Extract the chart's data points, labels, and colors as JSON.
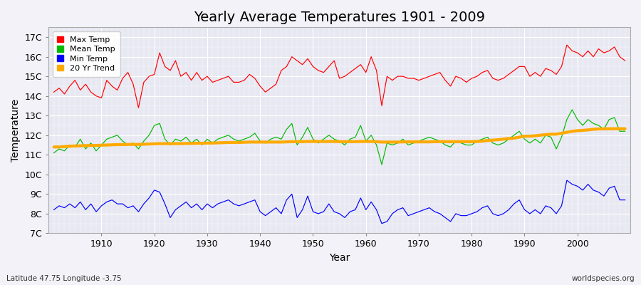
{
  "title": "Yearly Average Temperatures 1901 - 2009",
  "xlabel": "Year",
  "ylabel": "Temperature",
  "subtitle_left": "Latitude 47.75 Longitude -3.75",
  "subtitle_right": "worldspecies.org",
  "bg_color": "#f0f0f5",
  "plot_bg_color": "#e8e8f0",
  "years": [
    1901,
    1902,
    1903,
    1904,
    1905,
    1906,
    1907,
    1908,
    1909,
    1910,
    1911,
    1912,
    1913,
    1914,
    1915,
    1916,
    1917,
    1918,
    1919,
    1920,
    1921,
    1922,
    1923,
    1924,
    1925,
    1926,
    1927,
    1928,
    1929,
    1930,
    1931,
    1932,
    1933,
    1934,
    1935,
    1936,
    1937,
    1938,
    1939,
    1940,
    1941,
    1942,
    1943,
    1944,
    1945,
    1946,
    1947,
    1948,
    1949,
    1950,
    1951,
    1952,
    1953,
    1954,
    1955,
    1956,
    1957,
    1958,
    1959,
    1960,
    1961,
    1962,
    1963,
    1964,
    1965,
    1966,
    1967,
    1968,
    1969,
    1970,
    1971,
    1972,
    1973,
    1974,
    1975,
    1976,
    1977,
    1978,
    1979,
    1980,
    1981,
    1982,
    1983,
    1984,
    1985,
    1986,
    1987,
    1988,
    1989,
    1990,
    1991,
    1992,
    1993,
    1994,
    1995,
    1996,
    1997,
    1998,
    1999,
    2000,
    2001,
    2002,
    2003,
    2004,
    2005,
    2006,
    2007,
    2008,
    2009
  ],
  "max_temp": [
    14.2,
    14.4,
    14.1,
    14.5,
    14.8,
    14.3,
    14.6,
    14.2,
    14.0,
    13.9,
    14.8,
    14.5,
    14.3,
    14.9,
    15.2,
    14.6,
    13.4,
    14.7,
    15.0,
    15.1,
    16.2,
    15.5,
    15.3,
    15.8,
    15.0,
    15.2,
    14.8,
    15.2,
    14.8,
    15.0,
    14.7,
    14.8,
    14.9,
    15.0,
    14.7,
    14.7,
    14.8,
    15.1,
    14.9,
    14.5,
    14.2,
    14.4,
    14.6,
    15.3,
    15.5,
    16.0,
    15.8,
    15.6,
    15.9,
    15.5,
    15.3,
    15.2,
    15.5,
    15.8,
    14.9,
    15.0,
    15.2,
    15.4,
    15.6,
    15.2,
    16.0,
    15.3,
    13.5,
    15.0,
    14.8,
    15.0,
    15.0,
    14.9,
    14.9,
    14.8,
    14.9,
    15.0,
    15.1,
    15.2,
    14.8,
    14.5,
    15.0,
    14.9,
    14.7,
    14.9,
    15.0,
    15.2,
    15.3,
    14.9,
    14.8,
    14.9,
    15.1,
    15.3,
    15.5,
    15.5,
    15.0,
    15.2,
    15.0,
    15.4,
    15.3,
    15.1,
    15.5,
    16.6,
    16.3,
    16.2,
    16.0,
    16.3,
    16.0,
    16.4,
    16.2,
    16.3,
    16.5,
    16.0,
    15.8
  ],
  "mean_temp": [
    11.1,
    11.3,
    11.2,
    11.5,
    11.4,
    11.8,
    11.3,
    11.6,
    11.2,
    11.5,
    11.8,
    11.9,
    12.0,
    11.7,
    11.5,
    11.6,
    11.3,
    11.7,
    12.0,
    12.5,
    12.6,
    11.8,
    11.5,
    11.8,
    11.7,
    11.9,
    11.6,
    11.8,
    11.5,
    11.8,
    11.6,
    11.8,
    11.9,
    12.0,
    11.8,
    11.7,
    11.8,
    11.9,
    12.1,
    11.7,
    11.6,
    11.8,
    11.9,
    11.8,
    12.3,
    12.6,
    11.5,
    11.9,
    12.4,
    11.8,
    11.6,
    11.8,
    12.0,
    11.8,
    11.7,
    11.5,
    11.8,
    11.9,
    12.5,
    11.7,
    12.0,
    11.5,
    10.5,
    11.6,
    11.5,
    11.6,
    11.8,
    11.5,
    11.6,
    11.7,
    11.8,
    11.9,
    11.8,
    11.7,
    11.5,
    11.4,
    11.7,
    11.6,
    11.5,
    11.5,
    11.7,
    11.8,
    11.9,
    11.6,
    11.5,
    11.6,
    11.8,
    12.0,
    12.2,
    11.8,
    11.6,
    11.8,
    11.6,
    12.0,
    11.9,
    11.3,
    11.9,
    12.8,
    13.3,
    12.8,
    12.5,
    12.8,
    12.6,
    12.5,
    12.3,
    12.8,
    12.9,
    12.2,
    12.2
  ],
  "min_temp": [
    8.2,
    8.4,
    8.3,
    8.5,
    8.3,
    8.6,
    8.2,
    8.5,
    8.1,
    8.4,
    8.6,
    8.7,
    8.5,
    8.5,
    8.3,
    8.4,
    8.1,
    8.5,
    8.8,
    9.2,
    9.1,
    8.5,
    7.8,
    8.2,
    8.4,
    8.6,
    8.3,
    8.5,
    8.2,
    8.5,
    8.3,
    8.5,
    8.6,
    8.7,
    8.5,
    8.4,
    8.5,
    8.6,
    8.7,
    8.1,
    7.9,
    8.1,
    8.3,
    8.0,
    8.7,
    9.0,
    7.8,
    8.2,
    8.9,
    8.1,
    8.0,
    8.1,
    8.5,
    8.1,
    8.0,
    7.8,
    8.1,
    8.2,
    8.8,
    8.2,
    8.6,
    8.2,
    7.5,
    7.6,
    8.0,
    8.2,
    8.3,
    7.9,
    8.0,
    8.1,
    8.2,
    8.3,
    8.1,
    8.0,
    7.8,
    7.6,
    8.0,
    7.9,
    7.9,
    8.0,
    8.1,
    8.3,
    8.4,
    8.0,
    7.9,
    8.0,
    8.2,
    8.5,
    8.7,
    8.2,
    8.0,
    8.2,
    8.0,
    8.4,
    8.3,
    8.0,
    8.4,
    9.7,
    9.5,
    9.4,
    9.2,
    9.5,
    9.2,
    9.1,
    8.9,
    9.3,
    9.4,
    8.7,
    8.7
  ],
  "trend_vals": [
    11.4,
    11.4,
    11.42,
    11.44,
    11.45,
    11.46,
    11.47,
    11.48,
    11.48,
    11.49,
    11.5,
    11.51,
    11.52,
    11.52,
    11.53,
    11.53,
    11.53,
    11.54,
    11.55,
    11.56,
    11.57,
    11.57,
    11.57,
    11.57,
    11.57,
    11.58,
    11.58,
    11.59,
    11.59,
    11.6,
    11.6,
    11.61,
    11.62,
    11.63,
    11.63,
    11.63,
    11.64,
    11.65,
    11.65,
    11.65,
    11.65,
    11.65,
    11.65,
    11.65,
    11.66,
    11.67,
    11.67,
    11.67,
    11.68,
    11.68,
    11.68,
    11.68,
    11.68,
    11.68,
    11.67,
    11.67,
    11.67,
    11.67,
    11.68,
    11.68,
    11.68,
    11.67,
    11.65,
    11.65,
    11.65,
    11.65,
    11.66,
    11.66,
    11.66,
    11.66,
    11.66,
    11.66,
    11.67,
    11.67,
    11.67,
    11.67,
    11.67,
    11.67,
    11.67,
    11.67,
    11.68,
    11.7,
    11.73,
    11.75,
    11.77,
    11.8,
    11.83,
    11.85,
    11.9,
    11.95,
    11.95,
    11.97,
    12.0,
    12.03,
    12.05,
    12.05,
    12.1,
    12.15,
    12.2,
    12.23,
    12.25,
    12.27,
    12.3,
    12.32,
    12.32,
    12.33,
    12.33,
    12.33,
    12.33
  ],
  "ylim": [
    7.0,
    17.5
  ],
  "yticks": [
    7,
    8,
    9,
    10,
    11,
    12,
    13,
    14,
    15,
    16,
    17
  ],
  "xlim": [
    1900,
    2010
  ],
  "xticks": [
    1910,
    1920,
    1930,
    1940,
    1950,
    1960,
    1970,
    1980,
    1990,
    2000
  ],
  "line_color_max": "#ff0000",
  "line_color_mean": "#00bb00",
  "line_color_min": "#0000ff",
  "line_color_trend": "#ffaa00",
  "legend_labels": [
    "Max Temp",
    "Mean Temp",
    "Min Temp",
    "20 Yr Trend"
  ],
  "legend_colors": [
    "#ff0000",
    "#00bb00",
    "#0000ff",
    "#ffaa00"
  ],
  "title_fontsize": 14,
  "axis_label_fontsize": 10,
  "tick_fontsize": 9
}
